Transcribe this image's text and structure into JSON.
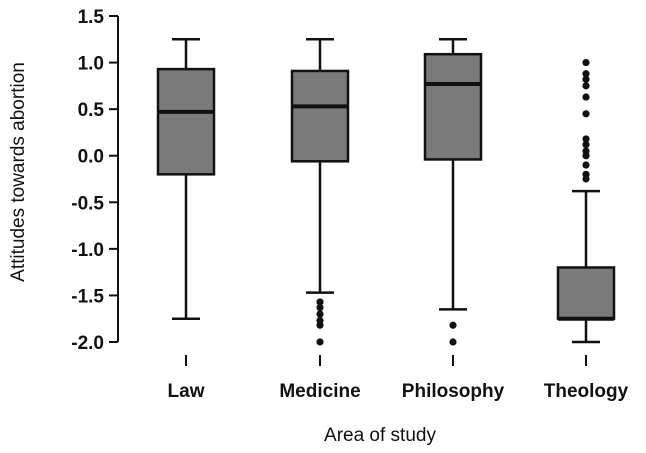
{
  "chart_data": {
    "type": "boxplot",
    "title": "",
    "xlabel": "Area of study",
    "ylabel": "Attitudes towards abortion",
    "ylim": [
      -2.0,
      1.5
    ],
    "yticks": [
      1.5,
      1.0,
      0.5,
      0.0,
      -0.5,
      -1.0,
      -1.5,
      -2.0
    ],
    "ytick_labels": [
      "1.5",
      "1.0",
      "0.5",
      "0.0",
      "-0.5",
      "-1.0",
      "-1.5",
      "-2.0"
    ],
    "grid": false,
    "legend": "none",
    "categories": [
      "Law",
      "Medicine",
      "Philosophy",
      "Theology"
    ],
    "boxes": [
      {
        "category": "Law",
        "whisker_low": -1.75,
        "q1": -0.2,
        "median": 0.47,
        "q3": 0.93,
        "whisker_high": 1.25,
        "outliers": []
      },
      {
        "category": "Medicine",
        "whisker_low": -1.47,
        "q1": -0.06,
        "median": 0.53,
        "q3": 0.91,
        "whisker_high": 1.25,
        "outliers": [
          -1.57,
          -1.63,
          -1.7,
          -1.77,
          -1.82,
          -2.0
        ]
      },
      {
        "category": "Philosophy",
        "whisker_low": -1.65,
        "q1": -0.04,
        "median": 0.77,
        "q3": 1.09,
        "whisker_high": 1.25,
        "outliers": [
          -1.82,
          -2.0
        ]
      },
      {
        "category": "Theology",
        "whisker_low": -2.0,
        "q1": -1.75,
        "median": -1.75,
        "q3": -1.2,
        "whisker_high": -0.38,
        "outliers": [
          -0.25,
          -0.2,
          -0.1,
          0.0,
          0.05,
          0.12,
          0.18,
          0.45,
          0.63,
          0.75,
          0.82,
          0.88,
          1.0
        ]
      }
    ],
    "colors": {
      "box_fill": "#7a7a7a",
      "line": "#111111",
      "outlier": "#111111"
    }
  }
}
